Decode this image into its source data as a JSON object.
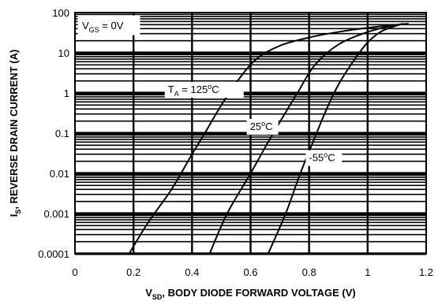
{
  "chart_data": {
    "type": "line",
    "xlabel": {
      "main": "V",
      "sub": "SD",
      "rest": ", BODY DIODE FORWARD VOLTAGE (V)"
    },
    "ylabel": {
      "main": "I",
      "sub": "S",
      "rest": ", REVERSE DRAIN CURRENT (A)"
    },
    "xlim": [
      0,
      1.2
    ],
    "ylim": [
      0.0001,
      100
    ],
    "yscale": "log",
    "grid": true,
    "xticks": [
      {
        "value": 0,
        "label": "0"
      },
      {
        "value": 0.2,
        "label": "0.2"
      },
      {
        "value": 0.4,
        "label": "0.4"
      },
      {
        "value": 0.6,
        "label": "0.6"
      },
      {
        "value": 0.8,
        "label": "0.8"
      },
      {
        "value": 1.0,
        "label": "1"
      },
      {
        "value": 1.2,
        "label": "1.2"
      }
    ],
    "yticks": [
      {
        "value": 100,
        "label": "100"
      },
      {
        "value": 10,
        "label": "10"
      },
      {
        "value": 1,
        "label": "1"
      },
      {
        "value": 0.1,
        "label": "0.1"
      },
      {
        "value": 0.01,
        "label": "0.01"
      },
      {
        "value": 0.001,
        "label": "0.001"
      },
      {
        "value": 0.0001,
        "label": "0.0001"
      }
    ],
    "condition": {
      "main": "V",
      "sub": "GS",
      "rest": " = 0V"
    },
    "series": [
      {
        "label_main": "T",
        "label_sub": "A",
        "label_rest": " = 125",
        "label_unit": "C",
        "x": [
          0.185,
          0.25,
          0.33,
          0.4,
          0.44,
          0.5,
          0.56,
          0.62,
          0.7,
          0.8,
          0.9,
          1.0,
          1.1,
          1.14
        ],
        "y": [
          0.0001,
          0.0006,
          0.004,
          0.03,
          0.09,
          0.5,
          2.2,
          7,
          15,
          24,
          33,
          42,
          50,
          53
        ]
      },
      {
        "label_main": "",
        "label_sub": "",
        "label_rest": "25",
        "label_unit": "C",
        "x": [
          0.46,
          0.52,
          0.6,
          0.66,
          0.71,
          0.76,
          0.82,
          0.9,
          1.0,
          1.1
        ],
        "y": [
          0.0001,
          0.001,
          0.01,
          0.06,
          0.25,
          1.0,
          5,
          16,
          33,
          50
        ]
      },
      {
        "label_main": "",
        "label_sub": "",
        "label_rest": "-55",
        "label_unit": "C",
        "x": [
          0.66,
          0.72,
          0.77,
          0.82,
          0.86,
          0.9,
          0.95,
          1.0,
          1.05,
          1.12
        ],
        "y": [
          0.0001,
          0.001,
          0.01,
          0.08,
          0.4,
          1.6,
          6,
          18,
          35,
          53
        ]
      }
    ]
  }
}
